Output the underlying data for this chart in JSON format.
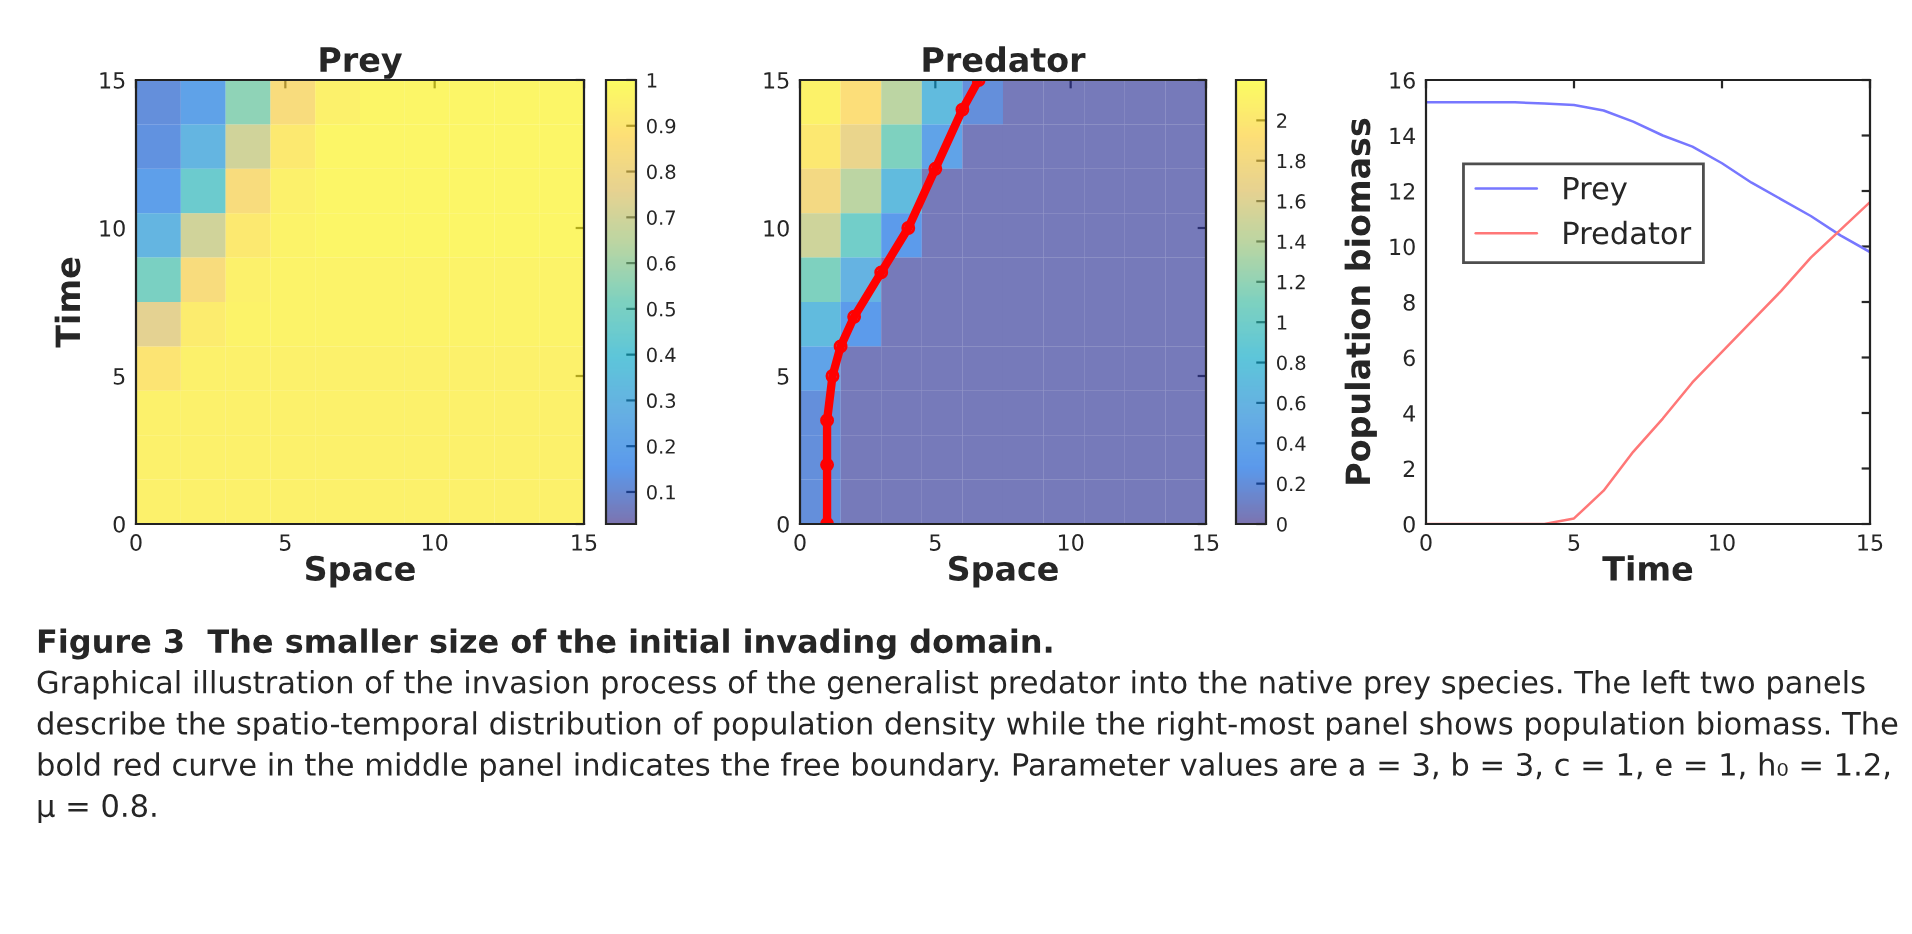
{
  "chart_data": [
    {
      "type": "heatmap",
      "title": "Prey",
      "xlabel": "Space",
      "ylabel": "Time",
      "x": [
        0.75,
        2.25,
        3.75,
        5.25,
        6.75,
        8.25,
        9.75,
        11.25,
        12.75,
        14.25
      ],
      "y": [
        14.25,
        12.75,
        11.25,
        9.75,
        8.25,
        6.75,
        5.25,
        3.75,
        2.25,
        0.75
      ],
      "cells": [
        [
          0.12,
          0.2,
          0.55,
          0.85,
          0.95,
          0.97,
          0.97,
          0.97,
          0.97,
          0.97
        ],
        [
          0.13,
          0.3,
          0.7,
          0.92,
          0.97,
          0.97,
          0.97,
          0.97,
          0.97,
          0.97
        ],
        [
          0.18,
          0.45,
          0.85,
          0.95,
          0.97,
          0.97,
          0.97,
          0.97,
          0.97,
          0.97
        ],
        [
          0.3,
          0.7,
          0.92,
          0.96,
          0.97,
          0.97,
          0.97,
          0.97,
          0.97,
          0.97
        ],
        [
          0.5,
          0.85,
          0.95,
          0.96,
          0.96,
          0.96,
          0.96,
          0.96,
          0.96,
          0.96
        ],
        [
          0.75,
          0.93,
          0.96,
          0.96,
          0.96,
          0.96,
          0.96,
          0.96,
          0.96,
          0.96
        ],
        [
          0.9,
          0.95,
          0.95,
          0.95,
          0.95,
          0.95,
          0.95,
          0.95,
          0.95,
          0.95
        ],
        [
          0.95,
          0.95,
          0.95,
          0.95,
          0.95,
          0.95,
          0.95,
          0.95,
          0.95,
          0.95
        ],
        [
          0.95,
          0.95,
          0.95,
          0.95,
          0.95,
          0.95,
          0.95,
          0.95,
          0.95,
          0.95
        ],
        [
          0.95,
          0.95,
          0.95,
          0.95,
          0.95,
          0.95,
          0.95,
          0.95,
          0.95,
          0.95
        ]
      ],
      "clim": [
        0.03,
        1
      ],
      "cticks": [
        0.1,
        0.2,
        0.3,
        0.4,
        0.5,
        0.6,
        0.7,
        0.8,
        0.9,
        1
      ],
      "xlim": [
        0,
        15
      ],
      "ylim": [
        0,
        15
      ],
      "xticks": [
        0,
        5,
        10,
        15
      ],
      "yticks": [
        0,
        5,
        10,
        15
      ]
    },
    {
      "type": "heatmap",
      "title": "Predator",
      "xlabel": "Space",
      "x": [
        0.75,
        2.25,
        3.75,
        5.25,
        6.75,
        8.25,
        9.75,
        11.25,
        12.75,
        14.25
      ],
      "y": [
        14.25,
        12.75,
        11.25,
        9.75,
        8.25,
        6.75,
        5.25,
        3.75,
        2.25,
        0.75
      ],
      "cells": [
        [
          2.1,
          1.9,
          1.4,
          0.7,
          0.2,
          0.05,
          0.05,
          0.05,
          0.05,
          0.05
        ],
        [
          2.0,
          1.7,
          1.1,
          0.4,
          0.05,
          0.05,
          0.05,
          0.05,
          0.05,
          0.05
        ],
        [
          1.8,
          1.4,
          0.7,
          0.05,
          0.05,
          0.05,
          0.05,
          0.05,
          0.05,
          0.05
        ],
        [
          1.5,
          1.0,
          0.3,
          0.05,
          0.05,
          0.05,
          0.05,
          0.05,
          0.05,
          0.05
        ],
        [
          1.1,
          0.6,
          0.05,
          0.05,
          0.05,
          0.05,
          0.05,
          0.05,
          0.05,
          0.05
        ],
        [
          0.7,
          0.3,
          0.05,
          0.05,
          0.05,
          0.05,
          0.05,
          0.05,
          0.05,
          0.05
        ],
        [
          0.4,
          0.05,
          0.05,
          0.05,
          0.05,
          0.05,
          0.05,
          0.05,
          0.05,
          0.05
        ],
        [
          0.2,
          0.05,
          0.05,
          0.05,
          0.05,
          0.05,
          0.05,
          0.05,
          0.05,
          0.05
        ],
        [
          0.2,
          0.05,
          0.05,
          0.05,
          0.05,
          0.05,
          0.05,
          0.05,
          0.05,
          0.05
        ],
        [
          0.2,
          0.05,
          0.05,
          0.05,
          0.05,
          0.05,
          0.05,
          0.05,
          0.05,
          0.05
        ]
      ],
      "clim": [
        0,
        2.2
      ],
      "cticks": [
        0,
        0.2,
        0.4,
        0.6,
        0.8,
        1,
        1.2,
        1.4,
        1.6,
        1.8,
        2
      ],
      "series": [
        {
          "type": "line",
          "color": "#ff0000",
          "marker": "circle",
          "x": [
            1,
            1,
            1,
            1.2,
            1.5,
            2,
            3,
            4,
            5,
            6,
            6.6
          ],
          "values": [
            0,
            2,
            3.5,
            5,
            6,
            7,
            8.5,
            10,
            12,
            14,
            15
          ]
        }
      ],
      "xlim": [
        0,
        15
      ],
      "ylim": [
        0,
        15
      ],
      "xticks": [
        0,
        5,
        10,
        15
      ],
      "yticks": [
        0,
        5,
        10,
        15
      ]
    },
    {
      "type": "line",
      "xlabel": "Time",
      "ylabel": "Population biomass",
      "x": [
        0,
        3,
        4,
        5,
        6,
        7,
        8,
        9,
        10,
        11,
        12,
        13,
        14,
        15
      ],
      "series": [
        {
          "name": "Prey",
          "color": "#7777ff",
          "values": [
            15.2,
            15.2,
            15.15,
            15.1,
            14.9,
            14.5,
            14.0,
            13.6,
            13.0,
            12.3,
            11.7,
            11.1,
            10.4,
            9.8
          ]
        },
        {
          "name": "Predator",
          "color": "#ff7777",
          "values": [
            0,
            0,
            0,
            0.2,
            1.2,
            2.6,
            3.8,
            5.1,
            6.2,
            7.3,
            8.4,
            9.6,
            10.6,
            11.6
          ]
        }
      ],
      "xlim": [
        0,
        15
      ],
      "ylim": [
        0,
        16
      ],
      "xticks": [
        0,
        5,
        10,
        15
      ],
      "yticks": [
        0,
        2,
        4,
        6,
        8,
        10,
        12,
        14,
        16
      ],
      "legend": "center left",
      "annotations": [
        "Figure 3  The smaller size of the initial invading domain.",
        "Graphical illustration of the invasion process of the generalist predator into the native prey species. The left two panels describe the spatio-temporal distribution of population density while the right-most panel shows population biomass. The bold red curve in the middle panel indicates the free boundary. Parameter values are a = 3, b = 3, c = 1, e = 1, h₀ = 1.2, μ = 0.8."
      ]
    }
  ]
}
